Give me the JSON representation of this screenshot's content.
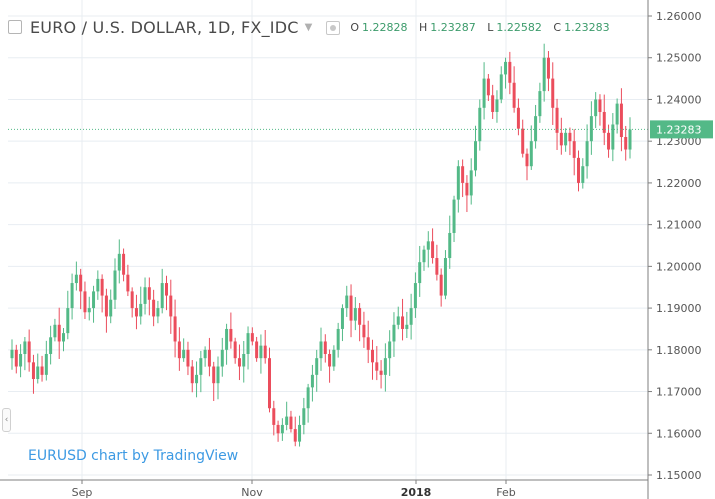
{
  "header": {
    "title": "EURO / U.S. DOLLAR, 1D, FX_IDC",
    "o_label": "O",
    "o_value": "1.22828",
    "h_label": "H",
    "h_value": "1.23287",
    "l_label": "L",
    "l_value": "1.22582",
    "c_label": "C",
    "c_value": "1.23283"
  },
  "watermark": "EURUSD chart by TradingView",
  "colors": {
    "up": "#53b987",
    "down": "#eb4d5c",
    "last": "#53b987",
    "grid": "#e8edf2"
  },
  "chart_data": {
    "type": "candlestick",
    "symbol": "EURUSD",
    "ylim": [
      1.15,
      1.26
    ],
    "y_ticks": [
      "1.15000",
      "1.16000",
      "1.17000",
      "1.18000",
      "1.19000",
      "1.20000",
      "1.21000",
      "1.22000",
      "1.23000",
      "1.24000",
      "1.25000",
      "1.26000"
    ],
    "x_ticks": [
      "Sep",
      "Nov",
      "2018",
      "Feb"
    ],
    "last_price": 1.23283,
    "last_price_label": "1.23283",
    "close": [
      1.18,
      1.176,
      1.179,
      1.182,
      1.177,
      1.173,
      1.176,
      1.174,
      1.179,
      1.183,
      1.186,
      1.182,
      1.184,
      1.19,
      1.196,
      1.198,
      1.194,
      1.189,
      1.19,
      1.194,
      1.197,
      1.193,
      1.188,
      1.192,
      1.199,
      1.203,
      1.198,
      1.194,
      1.19,
      1.188,
      1.191,
      1.195,
      1.192,
      1.188,
      1.19,
      1.196,
      1.193,
      1.188,
      1.182,
      1.178,
      1.18,
      1.176,
      1.172,
      1.174,
      1.178,
      1.18,
      1.176,
      1.172,
      1.176,
      1.18,
      1.185,
      1.182,
      1.178,
      1.176,
      1.179,
      1.184,
      1.182,
      1.178,
      1.181,
      1.178,
      1.166,
      1.162,
      1.16,
      1.162,
      1.164,
      1.161,
      1.158,
      1.162,
      1.166,
      1.171,
      1.174,
      1.178,
      1.182,
      1.179,
      1.176,
      1.18,
      1.185,
      1.19,
      1.193,
      1.187,
      1.19,
      1.186,
      1.183,
      1.18,
      1.177,
      1.175,
      1.174,
      1.178,
      1.182,
      1.186,
      1.188,
      1.185,
      1.186,
      1.19,
      1.196,
      1.201,
      1.204,
      1.206,
      1.202,
      1.198,
      1.193,
      1.202,
      1.208,
      1.216,
      1.224,
      1.22,
      1.217,
      1.223,
      1.23,
      1.238,
      1.245,
      1.241,
      1.237,
      1.24,
      1.246,
      1.249,
      1.244,
      1.238,
      1.233,
      1.227,
      1.224,
      1.23,
      1.236,
      1.242,
      1.25,
      1.245,
      1.238,
      1.232,
      1.229,
      1.232,
      1.23,
      1.226,
      1.22,
      1.224,
      1.23,
      1.236,
      1.24,
      1.237,
      1.232,
      1.228,
      1.234,
      1.239,
      1.231,
      1.228,
      1.2328
    ]
  }
}
